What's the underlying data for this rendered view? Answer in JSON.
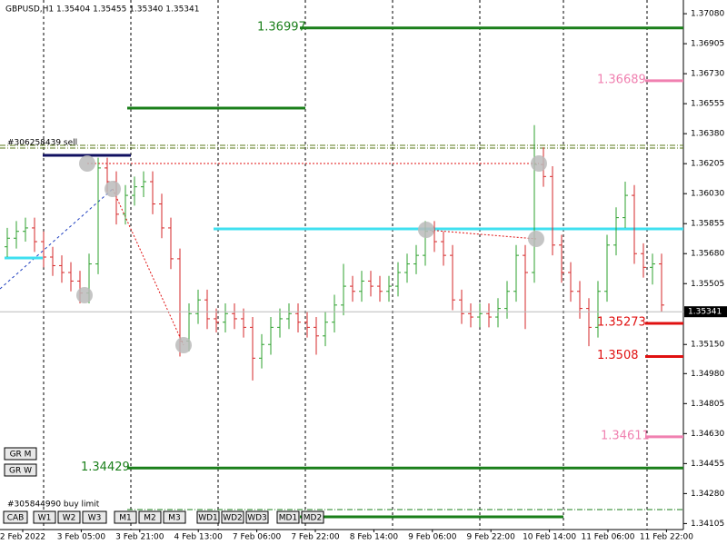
{
  "chart_data": {
    "type": "ohlc",
    "header": "GBPUSD,H1  1.35404 1.35455 1.35340 1.35341",
    "ylim": [
      1.3407,
      1.3716
    ],
    "yticks": [
      {
        "value": 1.3708,
        "label": "1.37080"
      },
      {
        "value": 1.36905,
        "label": "1.36905"
      },
      {
        "value": 1.3673,
        "label": "1.36730"
      },
      {
        "value": 1.36555,
        "label": "1.36555"
      },
      {
        "value": 1.3638,
        "label": "1.36380"
      },
      {
        "value": 1.36205,
        "label": "1.36205"
      },
      {
        "value": 1.3603,
        "label": "1.36030"
      },
      {
        "value": 1.35855,
        "label": "1.35855"
      },
      {
        "value": 1.3568,
        "label": "1.35680"
      },
      {
        "value": 1.35505,
        "label": "1.35505"
      },
      {
        "value": 1.3515,
        "label": "1.35150"
      },
      {
        "value": 1.3498,
        "label": "1.34980"
      },
      {
        "value": 1.34805,
        "label": "1.34805"
      },
      {
        "value": 1.3463,
        "label": "1.34630"
      },
      {
        "value": 1.34455,
        "label": "1.34455"
      },
      {
        "value": 1.3428,
        "label": "1.34280"
      },
      {
        "value": 1.34105,
        "label": "1.34105"
      }
    ],
    "x_labels": [
      "2 Feb 2022",
      "3 Feb 05:00",
      "3 Feb 21:00",
      "4 Feb 13:00",
      "7 Feb 06:00",
      "7 Feb 22:00",
      "8 Feb 14:00",
      "9 Feb 06:00",
      "9 Feb 22:00",
      "10 Feb 14:00",
      "11 Feb 06:00",
      "11 Feb 22:00"
    ],
    "up_color": "#2ca02c",
    "down_color": "#d62728",
    "current_price": 1.35341,
    "ohlc": [
      [
        1.3572,
        1.3583,
        1.3566,
        1.3577
      ],
      [
        1.3577,
        1.3587,
        1.3571,
        1.3581
      ],
      [
        1.3581,
        1.3589,
        1.3575,
        1.3583
      ],
      [
        1.3583,
        1.3589,
        1.3569,
        1.3575
      ],
      [
        1.3575,
        1.3581,
        1.356,
        1.3566
      ],
      [
        1.3566,
        1.3572,
        1.3555,
        1.3561
      ],
      [
        1.3561,
        1.3567,
        1.3551,
        1.3557
      ],
      [
        1.3557,
        1.3563,
        1.3546,
        1.3552
      ],
      [
        1.3552,
        1.3558,
        1.3539,
        1.3545
      ],
      [
        1.3545,
        1.3568,
        1.3539,
        1.3562
      ],
      [
        1.3562,
        1.3624,
        1.3556,
        1.3618
      ],
      [
        1.3618,
        1.3624,
        1.3604,
        1.361
      ],
      [
        1.361,
        1.3616,
        1.3585,
        1.3591
      ],
      [
        1.3591,
        1.3608,
        1.3585,
        1.3602
      ],
      [
        1.3602,
        1.3613,
        1.3596,
        1.3607
      ],
      [
        1.3607,
        1.3616,
        1.3601,
        1.361
      ],
      [
        1.361,
        1.3616,
        1.3591,
        1.3597
      ],
      [
        1.3597,
        1.3603,
        1.3577,
        1.3583
      ],
      [
        1.3583,
        1.3589,
        1.3559,
        1.3565
      ],
      [
        1.3565,
        1.3571,
        1.3508,
        1.3517
      ],
      [
        1.3517,
        1.3539,
        1.3511,
        1.3533
      ],
      [
        1.3533,
        1.3547,
        1.3527,
        1.3541
      ],
      [
        1.3541,
        1.3547,
        1.3524,
        1.353
      ],
      [
        1.353,
        1.3536,
        1.3522,
        1.3528
      ],
      [
        1.3528,
        1.3539,
        1.3522,
        1.3533
      ],
      [
        1.3533,
        1.3539,
        1.3524,
        1.353
      ],
      [
        1.353,
        1.3536,
        1.3519,
        1.3525
      ],
      [
        1.3525,
        1.3531,
        1.3494,
        1.3507
      ],
      [
        1.3507,
        1.3521,
        1.3501,
        1.3515
      ],
      [
        1.3515,
        1.3531,
        1.3509,
        1.3525
      ],
      [
        1.3525,
        1.3536,
        1.3519,
        1.353
      ],
      [
        1.353,
        1.3539,
        1.3524,
        1.3533
      ],
      [
        1.3533,
        1.3539,
        1.3522,
        1.3528
      ],
      [
        1.3528,
        1.3534,
        1.3519,
        1.3525
      ],
      [
        1.3525,
        1.3531,
        1.3509,
        1.352
      ],
      [
        1.352,
        1.3534,
        1.3514,
        1.3528
      ],
      [
        1.3528,
        1.3544,
        1.3522,
        1.3538
      ],
      [
        1.3538,
        1.3562,
        1.3532,
        1.3549
      ],
      [
        1.3549,
        1.3555,
        1.354,
        1.3546
      ],
      [
        1.3546,
        1.3558,
        1.354,
        1.3552
      ],
      [
        1.3552,
        1.3558,
        1.3543,
        1.3549
      ],
      [
        1.3549,
        1.3555,
        1.354,
        1.3546
      ],
      [
        1.3546,
        1.3555,
        1.354,
        1.3549
      ],
      [
        1.3549,
        1.3563,
        1.3543,
        1.3557
      ],
      [
        1.3557,
        1.3568,
        1.3551,
        1.3562
      ],
      [
        1.3562,
        1.3573,
        1.3556,
        1.3567
      ],
      [
        1.3567,
        1.3587,
        1.3561,
        1.3581
      ],
      [
        1.3581,
        1.3587,
        1.3569,
        1.3575
      ],
      [
        1.3575,
        1.3581,
        1.3561,
        1.3567
      ],
      [
        1.3567,
        1.3573,
        1.3535,
        1.3541
      ],
      [
        1.3541,
        1.3547,
        1.3527,
        1.3533
      ],
      [
        1.3533,
        1.3539,
        1.3525,
        1.3531
      ],
      [
        1.3531,
        1.3539,
        1.3525,
        1.3533
      ],
      [
        1.3533,
        1.3539,
        1.3525,
        1.3531
      ],
      [
        1.3531,
        1.3542,
        1.3525,
        1.3536
      ],
      [
        1.3536,
        1.3552,
        1.353,
        1.3546
      ],
      [
        1.3546,
        1.3573,
        1.354,
        1.3567
      ],
      [
        1.3567,
        1.3573,
        1.3524,
        1.3557
      ],
      [
        1.3557,
        1.3643,
        1.3551,
        1.362
      ],
      [
        1.362,
        1.363,
        1.3607,
        1.3613
      ],
      [
        1.3613,
        1.3619,
        1.3567,
        1.3573
      ],
      [
        1.3573,
        1.3579,
        1.3551,
        1.3557
      ],
      [
        1.3557,
        1.3563,
        1.354,
        1.3546
      ],
      [
        1.3546,
        1.3552,
        1.353,
        1.3536
      ],
      [
        1.3536,
        1.3542,
        1.3514,
        1.3525
      ],
      [
        1.3525,
        1.3552,
        1.3519,
        1.3546
      ],
      [
        1.3546,
        1.3579,
        1.354,
        1.3573
      ],
      [
        1.3573,
        1.3595,
        1.3567,
        1.3589
      ],
      [
        1.3589,
        1.361,
        1.3583,
        1.3602
      ],
      [
        1.3602,
        1.3608,
        1.3562,
        1.3568
      ],
      [
        1.3568,
        1.3574,
        1.3554,
        1.356
      ],
      [
        1.356,
        1.3568,
        1.355,
        1.3562
      ],
      [
        1.3562,
        1.3568,
        1.3534,
        1.3538
      ]
    ],
    "levels": [
      {
        "value": 1.36997,
        "color": "#1a7f1a"
      },
      {
        "value": 1.36689,
        "color": "#f080b0"
      },
      {
        "value": 1.35273,
        "color": "#e01010"
      },
      {
        "value": 1.3508,
        "color": "#e01010"
      },
      {
        "value": 1.34611,
        "color": "#f080b0"
      },
      {
        "value": 1.34429,
        "color": "#1a7f1a"
      }
    ],
    "orders": [
      "#306258439 sell",
      "#305844990 buy limit"
    ],
    "side_buttons": [
      "GR M",
      "GR W"
    ],
    "buttons": [
      "CAB",
      "W1",
      "W2",
      "W3",
      "M1",
      "M2",
      "M3",
      "WD1",
      "WD2",
      "WD3",
      "MD1",
      "MD2"
    ]
  }
}
